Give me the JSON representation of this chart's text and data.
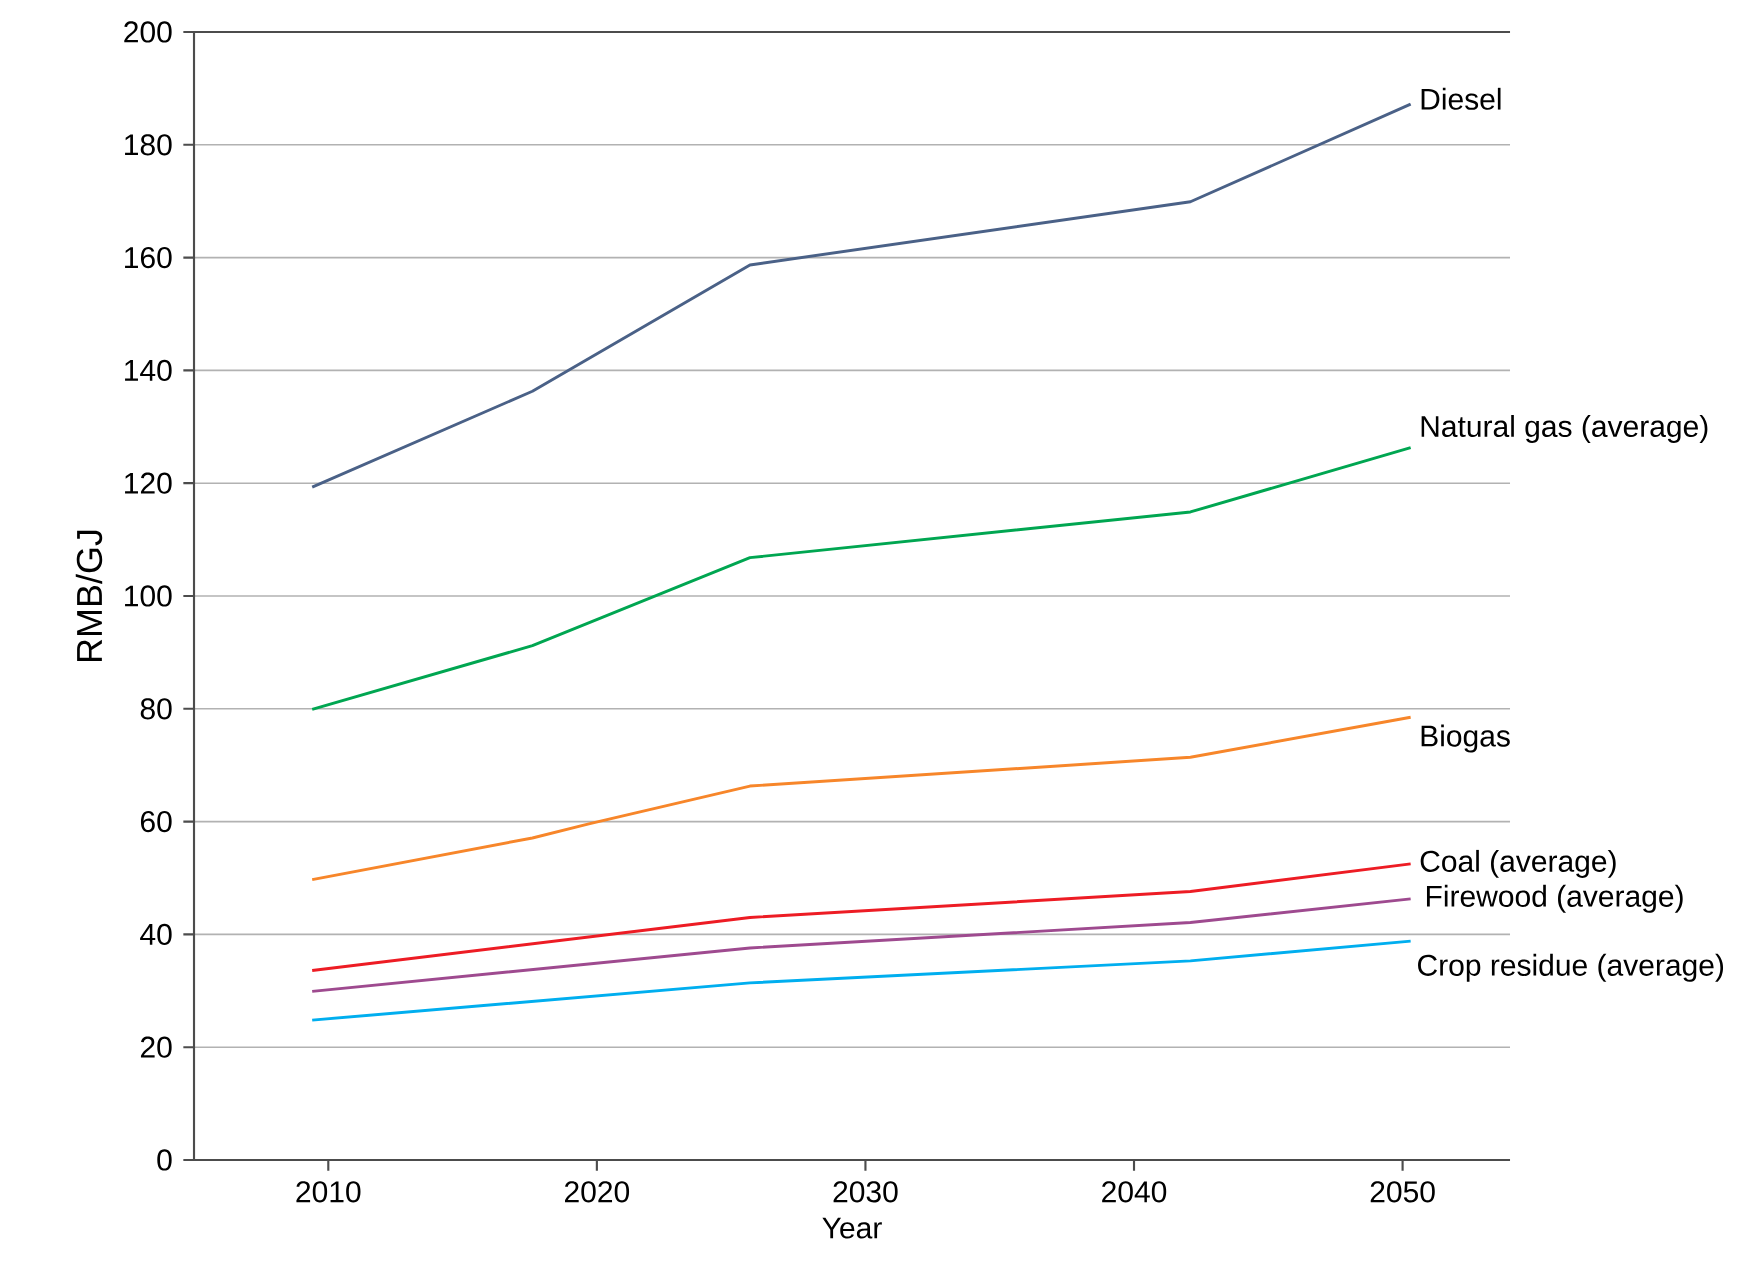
{
  "chart_data": {
    "type": "line",
    "xlabel": "Year",
    "ylabel": "RMB/GJ",
    "xlim": [
      2005,
      2054
    ],
    "ylim": [
      0,
      200
    ],
    "xticks": [
      2010,
      2020,
      2030,
      2040,
      2050
    ],
    "yticks": [
      0,
      20,
      40,
      60,
      80,
      100,
      120,
      140,
      160,
      180,
      200
    ],
    "grid": "y",
    "marker": "none",
    "line_style": "solid",
    "series": [
      {
        "name": "Diesel",
        "color": "#4a6187",
        "x": [
          2009.4,
          2017.6,
          2025.7,
          2042.1,
          2050.3
        ],
        "values": [
          119.3,
          136.3,
          158.7,
          169.9,
          187.2
        ]
      },
      {
        "name": "Natural gas (average)",
        "color": "#00a651",
        "x": [
          2009.4,
          2017.6,
          2025.7,
          2042.1,
          2050.3
        ],
        "values": [
          79.9,
          91.2,
          106.8,
          114.9,
          126.3
        ]
      },
      {
        "name": "Biogas",
        "color": "#f7862a",
        "x": [
          2009.4,
          2017.6,
          2019.7,
          2025.7,
          2042.1,
          2050.3
        ],
        "values": [
          49.7,
          57.1,
          59.6,
          66.3,
          71.4,
          78.5
        ]
      },
      {
        "name": "Coal (average)",
        "color": "#ed1c24",
        "x": [
          2009.4,
          2025.7,
          2042.1,
          2050.3
        ],
        "values": [
          33.6,
          43.0,
          47.6,
          52.5
        ]
      },
      {
        "name": "Firewood (average)",
        "color": "#9e4a8f",
        "x": [
          2009.4,
          2025.7,
          2042.1,
          2050.3
        ],
        "values": [
          29.9,
          37.6,
          42.1,
          46.3
        ]
      },
      {
        "name": "Crop residue (average)",
        "color": "#00aeef",
        "x": [
          2009.4,
          2025.7,
          2042.1,
          2050.3
        ],
        "values": [
          24.8,
          31.4,
          35.3,
          38.8
        ]
      }
    ]
  }
}
